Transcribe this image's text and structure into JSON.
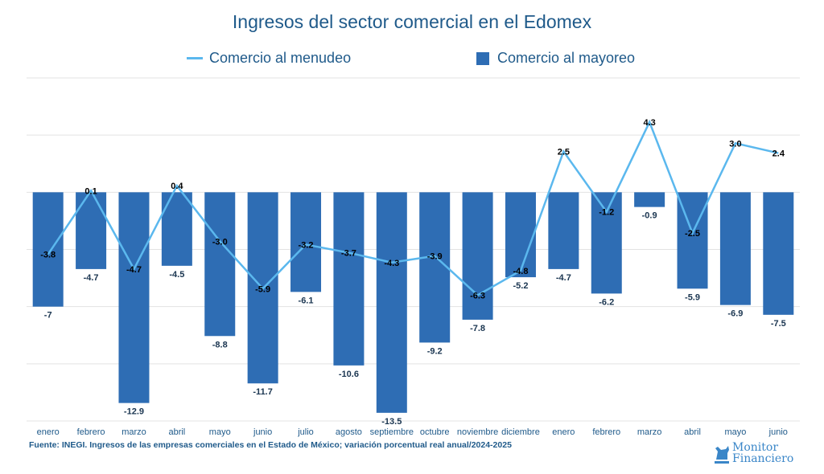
{
  "chart_data": {
    "type": "bar+line",
    "title": "Ingresos del sector comercial en el Edomex",
    "categories": [
      "enero",
      "febrero",
      "marzo",
      "abril",
      "mayo",
      "junio",
      "julio",
      "agosto",
      "septiembre",
      "octubre",
      "noviembre",
      "diciembre",
      "enero",
      "febrero",
      "marzo",
      "abril",
      "mayo",
      "junio"
    ],
    "series": [
      {
        "name": "Comercio al menudeo",
        "type": "line",
        "color": "#5bb8ee",
        "values": [
          -3.8,
          0.1,
          -4.7,
          0.4,
          -3.0,
          -5.9,
          -3.2,
          -3.7,
          -4.3,
          -3.9,
          -6.3,
          -4.8,
          2.5,
          -1.2,
          4.3,
          -2.5,
          3.0,
          2.4
        ]
      },
      {
        "name": "Comercio al mayoreo",
        "type": "bar",
        "color": "#2e6db4",
        "values": [
          -7,
          -4.7,
          -12.9,
          -4.5,
          -8.8,
          -11.7,
          -6.1,
          -10.6,
          -13.5,
          -9.2,
          -7.8,
          -5.2,
          -4.7,
          -6.2,
          -0.9,
          -5.9,
          -6.9,
          -7.5
        ]
      }
    ],
    "line_labels": [
      "-3.8",
      "0.1",
      "-4.7",
      "0.4",
      "-3.0",
      "-5.9",
      "-3.2",
      "-3.7",
      "-4.3",
      "-3.9",
      "-6.3",
      "-4.8",
      "2.5",
      "-1.2",
      "4.3",
      "-2.5",
      "3.0",
      "2.4"
    ],
    "bar_labels": [
      "-7",
      "-4.7",
      "-12.9",
      "-4.5",
      "-8.8",
      "-11.7",
      "-6.1",
      "-10.6",
      "-13.5",
      "-9.2",
      "-7.8",
      "-5.2",
      "-4.7",
      "-6.2",
      "-0.9",
      "-5.9",
      "-6.9",
      "-7.5"
    ],
    "ylim": [
      -14,
      7
    ],
    "grid": true,
    "legend": "top-center"
  },
  "legend": {
    "line": "Comercio al menudeo",
    "bar": "Comercio al mayoreo"
  },
  "source": "Fuente: INEGI. Ingresos de las empresas comerciales en el Estado de México; variación porcentual real anual/2024-2025",
  "logo": {
    "line1": "Monitor",
    "line2": "Financiero"
  }
}
